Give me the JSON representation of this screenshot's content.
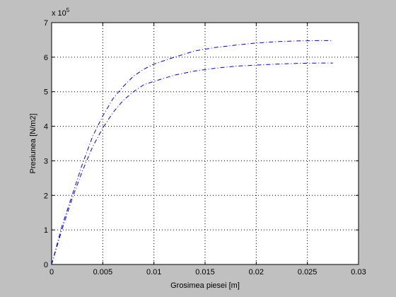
{
  "chart_data": {
    "type": "line",
    "x_label": "Grosimea piesei [m]",
    "y_label": "Presiunea [N/m2]",
    "y_multiplier": {
      "base": "x 10",
      "exponent": "5"
    },
    "x": [
      0,
      0.001,
      0.002,
      0.003,
      0.004,
      0.005,
      0.006,
      0.007,
      0.008,
      0.009,
      0.01,
      0.012,
      0.014,
      0.016,
      0.018,
      0.02,
      0.022,
      0.024,
      0.026,
      0.0275
    ],
    "series": [
      {
        "color": "#0000ff",
        "values": [
          0,
          1.1,
          2.0,
          2.9,
          3.7,
          4.3,
          4.8,
          5.15,
          5.45,
          5.65,
          5.8,
          6.0,
          6.18,
          6.28,
          6.35,
          6.41,
          6.45,
          6.47,
          6.48,
          6.48
        ]
      },
      {
        "color": "#0000ff",
        "values": [
          0,
          1.0,
          1.9,
          2.7,
          3.4,
          3.95,
          4.4,
          4.75,
          5.0,
          5.2,
          5.3,
          5.48,
          5.6,
          5.68,
          5.74,
          5.77,
          5.8,
          5.82,
          5.83,
          5.83
        ]
      }
    ],
    "xlim": [
      0,
      0.03
    ],
    "xticks": [
      0,
      0.005,
      0.01,
      0.015,
      0.02,
      0.025,
      0.03
    ],
    "ylim": [
      0,
      7
    ],
    "yticks": [
      0,
      1,
      2,
      3,
      4,
      5,
      6,
      7
    ],
    "grid": true
  }
}
